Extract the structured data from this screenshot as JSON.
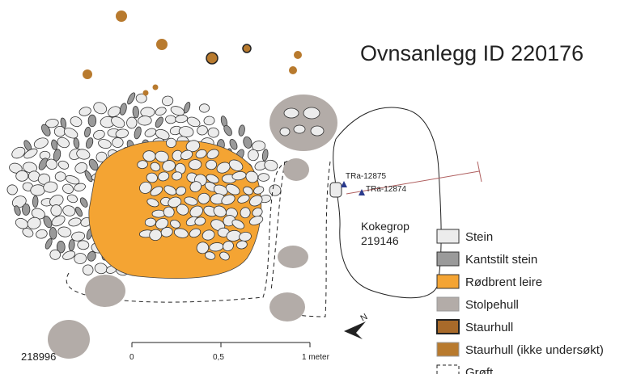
{
  "title": "Ovnsanlegg ID 220176",
  "labels": {
    "sample_1": "TRa-12875",
    "sample_2": "TRa-12874",
    "pit_name": "Kokegrop",
    "pit_id": "219146",
    "feature_id": "218996"
  },
  "scale": {
    "start": "0",
    "middle": "0,5",
    "end": "1 meter"
  },
  "legend": [
    "Stein",
    "Kantstilt stein",
    "Rødbrent leire",
    "Stolpehull",
    "Staurhull",
    "Staurhull (ikke undersøkt)",
    "Grøft"
  ]
}
